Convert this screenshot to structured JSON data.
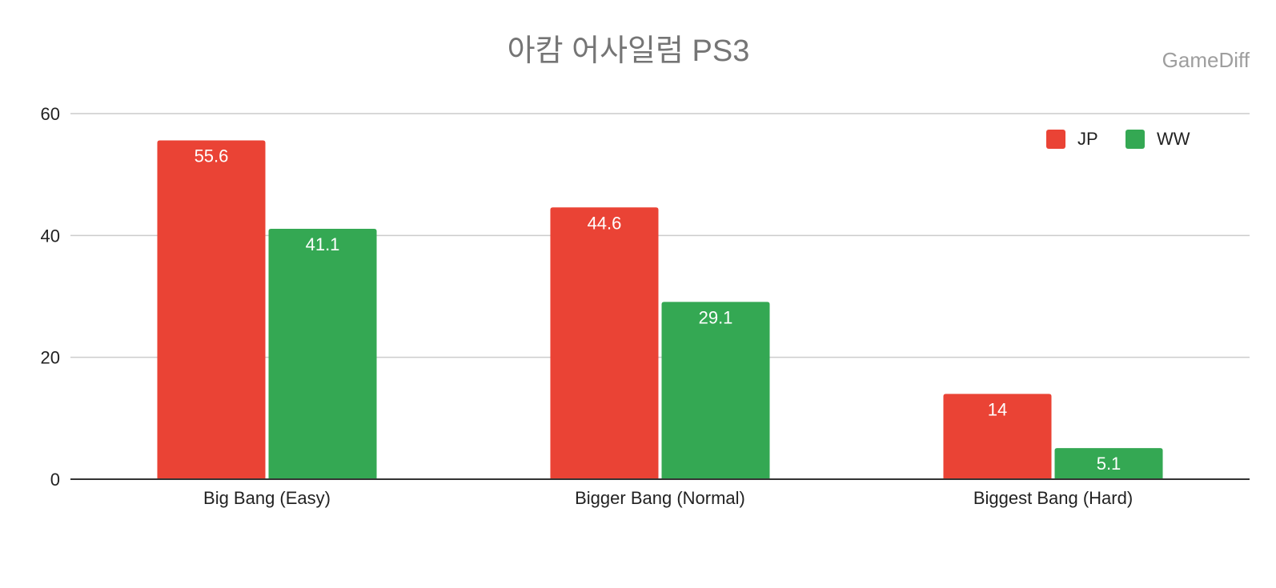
{
  "chart_data": {
    "type": "bar",
    "title": "아캄 어사일럼 PS3",
    "watermark": "GameDiff",
    "xlabel": "",
    "ylabel": "",
    "categories": [
      "Big Bang (Easy)",
      "Bigger Bang (Normal)",
      "Biggest Bang (Hard)"
    ],
    "series": [
      {
        "name": "JP",
        "color": "#ea4335",
        "values": [
          55.6,
          44.6,
          14
        ]
      },
      {
        "name": "WW",
        "color": "#34a853",
        "values": [
          41.1,
          29.1,
          5.1
        ]
      }
    ],
    "ylim": [
      0,
      60
    ],
    "yticks": [
      0,
      20,
      40,
      60
    ],
    "grid": true,
    "legend": "top-right",
    "data_labels": true
  }
}
